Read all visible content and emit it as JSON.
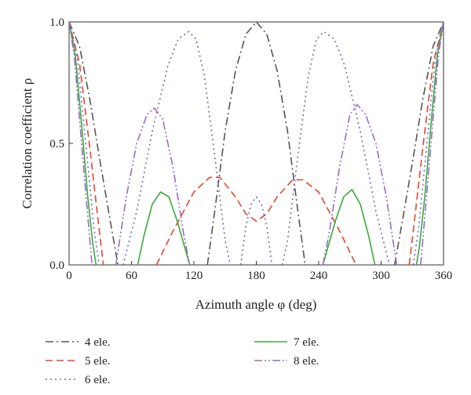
{
  "chart_data": {
    "type": "line",
    "title": "",
    "xlabel": "Azimuth angle φ (deg)",
    "ylabel": "Correlation coefficient ρ",
    "xlim": [
      0,
      360
    ],
    "ylim": [
      0,
      1
    ],
    "xticks": [
      "0",
      "60",
      "120",
      "180",
      "240",
      "300",
      "360"
    ],
    "yticks": [
      "0.0",
      "0.5",
      "1.0"
    ],
    "grid": false,
    "legend_position": "bottom",
    "series": [
      {
        "name": "4 ele.",
        "color": "#555555",
        "dash": "dash-dot",
        "segments": [
          [
            [
              0,
              1.0
            ],
            [
              10,
              0.9
            ],
            [
              20,
              0.68
            ],
            [
              30,
              0.42
            ],
            [
              40,
              0.17
            ],
            [
              47,
              0.0
            ]
          ],
          [
            [
              133,
              0.0
            ],
            [
              140,
              0.22
            ],
            [
              150,
              0.55
            ],
            [
              160,
              0.8
            ],
            [
              170,
              0.95
            ],
            [
              180,
              1.0
            ],
            [
              190,
              0.95
            ],
            [
              200,
              0.8
            ],
            [
              210,
              0.55
            ],
            [
              220,
              0.22
            ],
            [
              227,
              0.0
            ]
          ],
          [
            [
              313,
              0.0
            ],
            [
              320,
              0.17
            ],
            [
              330,
              0.42
            ],
            [
              340,
              0.68
            ],
            [
              350,
              0.9
            ],
            [
              360,
              1.0
            ]
          ]
        ]
      },
      {
        "name": "5 ele.",
        "color": "#e8442a",
        "dash": "dash",
        "segments": [
          [
            [
              0,
              1.0
            ],
            [
              10,
              0.83
            ],
            [
              20,
              0.48
            ],
            [
              28,
              0.18
            ],
            [
              33,
              0.0
            ]
          ],
          [
            [
              84,
              0.0
            ],
            [
              100,
              0.14
            ],
            [
              120,
              0.3
            ],
            [
              135,
              0.36
            ],
            [
              145,
              0.36
            ],
            [
              160,
              0.28
            ],
            [
              170,
              0.21
            ],
            [
              180,
              0.18
            ],
            [
              190,
              0.21
            ],
            [
              200,
              0.28
            ],
            [
              215,
              0.35
            ],
            [
              225,
              0.35
            ],
            [
              240,
              0.3
            ],
            [
              260,
              0.14
            ],
            [
              276,
              0.0
            ]
          ],
          [
            [
              327,
              0.0
            ],
            [
              332,
              0.18
            ],
            [
              340,
              0.48
            ],
            [
              350,
              0.83
            ],
            [
              360,
              1.0
            ]
          ]
        ]
      },
      {
        "name": "6 ele.",
        "color": "#6a6ad0",
        "dash": "dot",
        "segments": [
          [
            [
              0,
              1.0
            ],
            [
              8,
              0.85
            ],
            [
              16,
              0.5
            ],
            [
              24,
              0.15
            ],
            [
              29,
              0.0
            ]
          ],
          [
            [
              52,
              0.0
            ],
            [
              65,
              0.22
            ],
            [
              80,
              0.55
            ],
            [
              95,
              0.82
            ],
            [
              105,
              0.93
            ],
            [
              115,
              0.96
            ],
            [
              122,
              0.93
            ],
            [
              130,
              0.78
            ],
            [
              140,
              0.45
            ],
            [
              150,
              0.1
            ],
            [
              155,
              0.0
            ]
          ],
          [
            [
              165,
              0.0
            ],
            [
              170,
              0.16
            ],
            [
              175,
              0.25
            ],
            [
              180,
              0.28
            ],
            [
              185,
              0.25
            ],
            [
              190,
              0.16
            ],
            [
              195,
              0.0
            ]
          ],
          [
            [
              205,
              0.0
            ],
            [
              210,
              0.1
            ],
            [
              220,
              0.45
            ],
            [
              230,
              0.78
            ],
            [
              238,
              0.93
            ],
            [
              245,
              0.96
            ],
            [
              255,
              0.93
            ],
            [
              265,
              0.82
            ],
            [
              280,
              0.55
            ],
            [
              295,
              0.22
            ],
            [
              308,
              0.0
            ]
          ],
          [
            [
              331,
              0.0
            ],
            [
              336,
              0.15
            ],
            [
              344,
              0.5
            ],
            [
              352,
              0.85
            ],
            [
              360,
              1.0
            ]
          ]
        ]
      },
      {
        "name": "7 ele.",
        "color": "#3aaa3a",
        "dash": "solid",
        "segments": [
          [
            [
              0,
              1.0
            ],
            [
              6,
              0.86
            ],
            [
              12,
              0.58
            ],
            [
              18,
              0.28
            ],
            [
              23,
              0.08
            ],
            [
              26,
              0.0
            ]
          ],
          [
            [
              66,
              0.0
            ],
            [
              72,
              0.12
            ],
            [
              80,
              0.25
            ],
            [
              88,
              0.3
            ],
            [
              96,
              0.28
            ],
            [
              104,
              0.18
            ],
            [
              112,
              0.06
            ],
            [
              116,
              0.0
            ]
          ],
          [
            [
              244,
              0.0
            ],
            [
              248,
              0.06
            ],
            [
              256,
              0.18
            ],
            [
              264,
              0.28
            ],
            [
              272,
              0.31
            ],
            [
              280,
              0.25
            ],
            [
              288,
              0.12
            ],
            [
              294,
              0.0
            ]
          ],
          [
            [
              334,
              0.0
            ],
            [
              337,
              0.08
            ],
            [
              342,
              0.28
            ],
            [
              348,
              0.58
            ],
            [
              354,
              0.86
            ],
            [
              360,
              1.0
            ]
          ]
        ]
      },
      {
        "name": "8 ele.",
        "color": "#9a6ac8",
        "dash": "dash-dot-dot",
        "segments": [
          [
            [
              0,
              1.0
            ],
            [
              5,
              0.86
            ],
            [
              11,
              0.55
            ],
            [
              17,
              0.25
            ],
            [
              22,
              0.0
            ]
          ],
          [
            [
              45,
              0.0
            ],
            [
              55,
              0.28
            ],
            [
              65,
              0.5
            ],
            [
              75,
              0.62
            ],
            [
              82,
              0.645
            ],
            [
              90,
              0.6
            ],
            [
              100,
              0.4
            ],
            [
              110,
              0.13
            ],
            [
              116,
              0.0
            ]
          ],
          [
            [
              244,
              0.0
            ],
            [
              250,
              0.13
            ],
            [
              260,
              0.4
            ],
            [
              270,
              0.62
            ],
            [
              277,
              0.66
            ],
            [
              285,
              0.62
            ],
            [
              295,
              0.5
            ],
            [
              305,
              0.28
            ],
            [
              315,
              0.0
            ]
          ],
          [
            [
              338,
              0.0
            ],
            [
              343,
              0.25
            ],
            [
              349,
              0.55
            ],
            [
              355,
              0.86
            ],
            [
              360,
              1.0
            ]
          ]
        ]
      }
    ]
  }
}
